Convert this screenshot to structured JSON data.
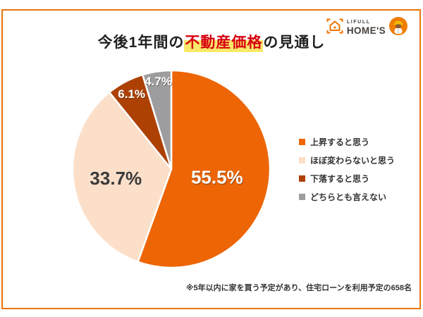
{
  "page": {
    "background": "#ffffff",
    "frame_color": "#e8740e"
  },
  "header": {
    "title": {
      "prefix": "今後1年間の",
      "highlight": "不動産価格",
      "suffix": "の見通し"
    },
    "highlight_bg": "#f8e969",
    "highlight_text_color": "#d7000f",
    "logo": {
      "brand_top": "LIFULL",
      "brand_bottom": "HOME'S",
      "brand_color": "#473f3b",
      "icon_color": "#ee7300",
      "mascot_color": "#ef7c00"
    }
  },
  "chart_data": {
    "type": "pie",
    "title": "今後1年間の不動産価格の見通し",
    "direction": "clockwise",
    "start_angle_deg": 0,
    "legend_position": "right",
    "value_suffix": "%",
    "slice_gap_color": "#ffffff",
    "label_radius_frac": [
      0.47,
      0.57,
      0.86,
      0.9
    ],
    "segments": [
      {
        "label": "上昇すると思う",
        "value": 55.5,
        "color": "#ed6504",
        "label_color": "#ffffff"
      },
      {
        "label": "ほぼ変わらないと思う",
        "value": 33.7,
        "color": "#fcdfc9",
        "label_color": "#3a3a3a"
      },
      {
        "label": "下落すると思う",
        "value": 6.1,
        "color": "#ad4104",
        "label_color": "#ffffff"
      },
      {
        "label": "どちらとも言えない",
        "value": 4.7,
        "color": "#9d9d9f",
        "label_color": "#ffffff"
      }
    ]
  },
  "footnote": "※5年以内に家を買う予定があり、住宅ローンを利用予定の658名"
}
